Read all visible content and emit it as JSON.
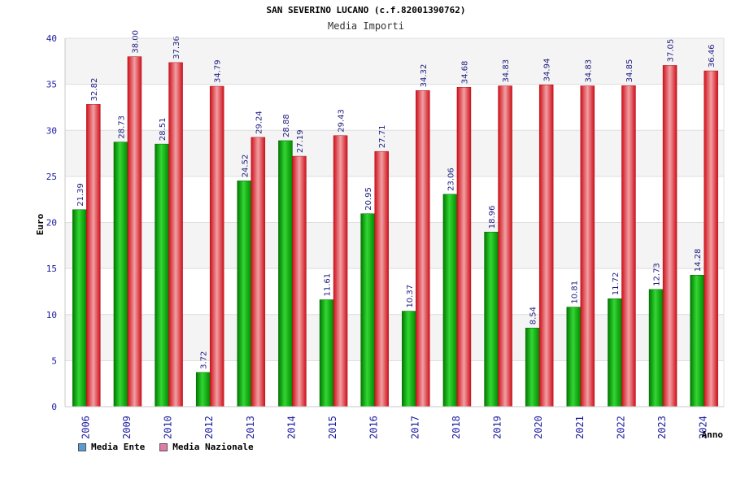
{
  "chart_data": {
    "type": "bar",
    "title": "SAN SEVERINO LUCANO (c.f.82001390762)",
    "subtitle": "Media Importi",
    "xlabel": "Anno",
    "ylabel": "Euro",
    "ylim": [
      0,
      40
    ],
    "yticks": [
      "0",
      "5",
      "10",
      "15",
      "20",
      "25",
      "30",
      "35",
      "40"
    ],
    "grid": true,
    "legend_position": "bottom-left",
    "categories": [
      "2006",
      "2009",
      "2010",
      "2012",
      "2013",
      "2014",
      "2015",
      "2016",
      "2017",
      "2018",
      "2019",
      "2020",
      "2021",
      "2022",
      "2023",
      "2024"
    ],
    "series": [
      {
        "name": "Media Ente",
        "color": "#00aa00",
        "values": [
          21.39,
          28.73,
          28.51,
          3.72,
          24.52,
          28.88,
          11.61,
          20.95,
          10.37,
          23.06,
          18.96,
          8.54,
          10.81,
          11.72,
          12.73,
          14.28
        ],
        "labels": [
          "21.39",
          "28.73",
          "28.51",
          "3.72",
          "24.52",
          "28.88",
          "11.61",
          "20.95",
          "10.37",
          "23.06",
          "18.96",
          "8.54",
          "10.81",
          "11.72",
          "12.73",
          "14.28"
        ]
      },
      {
        "name": "Media Nazionale",
        "color": "#ee1c25",
        "values": [
          32.82,
          38.0,
          37.36,
          34.79,
          29.24,
          27.19,
          29.43,
          27.71,
          34.32,
          34.68,
          34.83,
          34.94,
          34.83,
          34.85,
          37.05,
          36.46
        ],
        "labels": [
          "32.82",
          "38.00",
          "37.36",
          "34.79",
          "29.24",
          "27.19",
          "29.43",
          "27.71",
          "34.32",
          "34.68",
          "34.83",
          "34.94",
          "34.83",
          "34.85",
          "37.05",
          "36.46"
        ]
      }
    ],
    "legend": [
      {
        "label": "Media Ente",
        "color": "#5b9bd5"
      },
      {
        "label": "Media Nazionale",
        "color": "#e07ba8"
      }
    ]
  }
}
